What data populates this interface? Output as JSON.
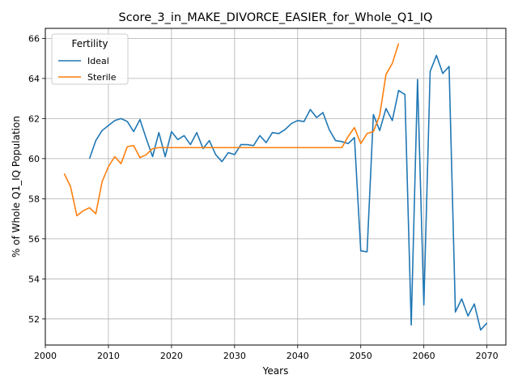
{
  "chart_data": {
    "type": "line",
    "title": "Score_3_in_MAKE_DIVORCE_EASIER_for_Whole_Q1_IQ",
    "xlabel": "Years",
    "ylabel": "% of Whole Q1_IQ Population",
    "xlim": [
      2000,
      2073
    ],
    "ylim": [
      50.7,
      66.5
    ],
    "xticks": [
      2000,
      2010,
      2020,
      2030,
      2040,
      2050,
      2060,
      2070
    ],
    "yticks": [
      52,
      54,
      56,
      58,
      60,
      62,
      64,
      66
    ],
    "grid": true,
    "legend": {
      "title": "Fertility",
      "placement": "top-left"
    },
    "series": [
      {
        "name": "Ideal",
        "color": "#1f77b4",
        "x": [
          2007,
          2008,
          2009,
          2010,
          2011,
          2012,
          2013,
          2014,
          2015,
          2016,
          2017,
          2018,
          2019,
          2020,
          2021,
          2022,
          2023,
          2024,
          2025,
          2026,
          2027,
          2028,
          2029,
          2030,
          2031,
          2032,
          2033,
          2034,
          2035,
          2036,
          2037,
          2038,
          2039,
          2040,
          2041,
          2042,
          2043,
          2044,
          2045,
          2046,
          2047,
          2048,
          2049,
          2050,
          2051,
          2052,
          2053,
          2054,
          2055,
          2056,
          2057,
          2058,
          2059,
          2060,
          2061,
          2062,
          2063,
          2064,
          2065,
          2066,
          2067,
          2068,
          2069,
          2070
        ],
        "y": [
          60.0,
          60.9,
          61.4,
          61.65,
          61.9,
          62.0,
          61.85,
          61.35,
          61.95,
          61.0,
          60.1,
          61.3,
          60.1,
          61.35,
          60.95,
          61.15,
          60.7,
          61.3,
          60.5,
          60.9,
          60.2,
          59.85,
          60.3,
          60.2,
          60.7,
          60.7,
          60.65,
          61.15,
          60.8,
          61.3,
          61.25,
          61.45,
          61.75,
          61.9,
          61.85,
          62.45,
          62.05,
          62.3,
          61.45,
          60.9,
          60.85,
          60.75,
          61.05,
          55.4,
          55.35,
          62.2,
          61.4,
          62.5,
          61.9,
          63.4,
          63.2,
          51.7,
          63.95,
          52.7,
          64.35,
          65.15,
          64.25,
          64.6,
          52.35,
          53.0,
          52.15,
          52.75,
          51.45,
          51.8
        ]
      },
      {
        "name": "Sterile",
        "color": "#ff7f0e",
        "x": [
          2003,
          2004,
          2005,
          2006,
          2007,
          2008,
          2009,
          2010,
          2011,
          2012,
          2013,
          2014,
          2015,
          2016,
          2017,
          2018,
          2019,
          2020,
          2021,
          2022,
          2023,
          2024,
          2025,
          2026,
          2027,
          2028,
          2029,
          2030,
          2031,
          2032,
          2033,
          2034,
          2035,
          2036,
          2037,
          2038,
          2039,
          2040,
          2041,
          2042,
          2043,
          2044,
          2045,
          2046,
          2047,
          2048,
          2049,
          2050,
          2051,
          2052,
          2053,
          2054,
          2055,
          2056
        ],
        "y": [
          59.25,
          58.6,
          57.15,
          57.4,
          57.55,
          57.25,
          58.85,
          59.6,
          60.1,
          59.75,
          60.6,
          60.65,
          60.05,
          60.2,
          60.5,
          60.55,
          60.55,
          60.55,
          60.55,
          60.55,
          60.55,
          60.55,
          60.55,
          60.55,
          60.55,
          60.55,
          60.55,
          60.55,
          60.55,
          60.55,
          60.55,
          60.55,
          60.55,
          60.55,
          60.55,
          60.55,
          60.55,
          60.55,
          60.55,
          60.55,
          60.55,
          60.55,
          60.55,
          60.55,
          60.55,
          61.1,
          61.55,
          60.75,
          61.25,
          61.35,
          62.15,
          64.2,
          64.75,
          65.75
        ]
      }
    ]
  }
}
